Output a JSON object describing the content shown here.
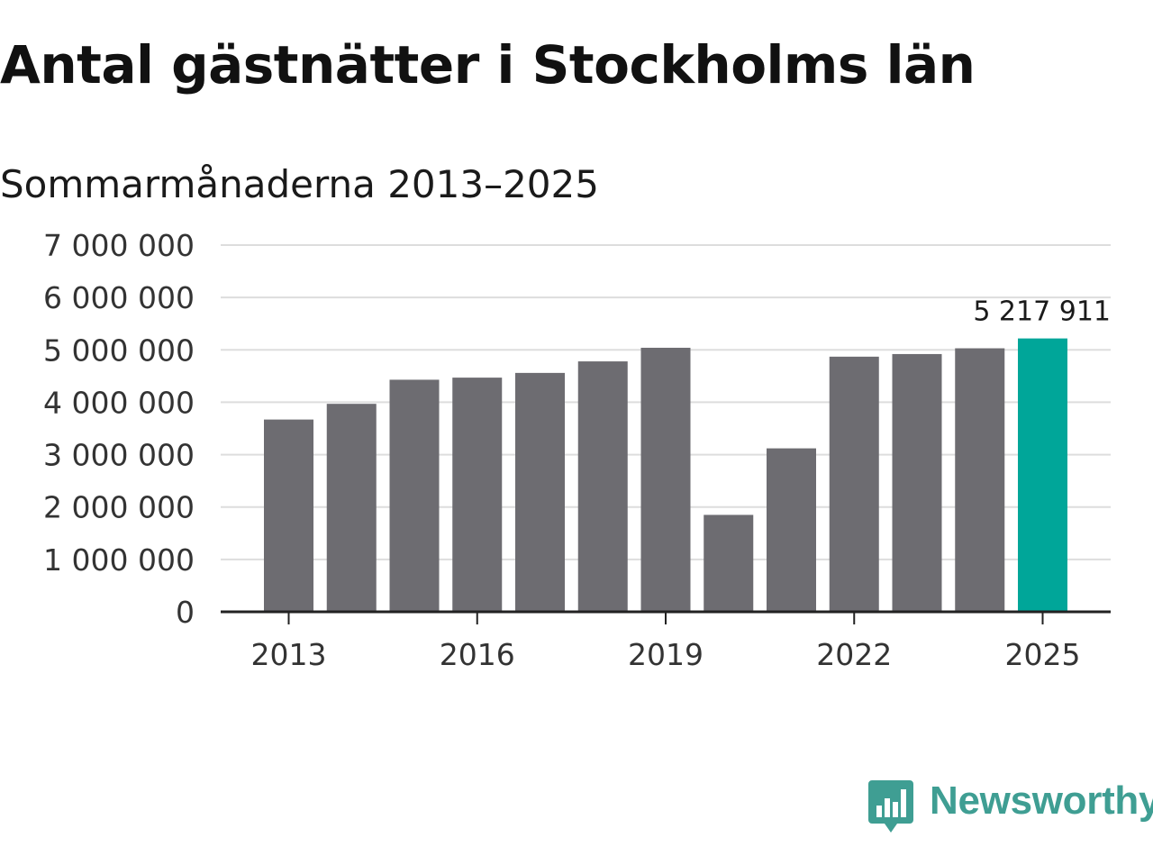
{
  "header": {
    "title": "Antal gästnätter i Stockholms län",
    "subtitle": "Sommarmånaderna 2013–2025"
  },
  "logo": {
    "text": "Newsworthy",
    "icon": "bar-chart-speech-bubble-icon",
    "color": "#3f9e93"
  },
  "colors": {
    "bar": "#6d6c71",
    "highlight": "#00a699",
    "grid": "#dddddd",
    "axis": "#222222"
  },
  "chart_data": {
    "type": "bar",
    "categories": [
      "2013",
      "2014",
      "2015",
      "2016",
      "2017",
      "2018",
      "2019",
      "2020",
      "2021",
      "2022",
      "2023",
      "2024",
      "2025"
    ],
    "values": [
      3670000,
      3970000,
      4430000,
      4470000,
      4560000,
      4780000,
      5040000,
      1850000,
      3120000,
      4870000,
      4920000,
      5030000,
      5217911
    ],
    "highlight_index": 12,
    "annotations": [
      {
        "category": "2025",
        "label": "5 217 911"
      }
    ],
    "xticks": [
      "2013",
      "2016",
      "2019",
      "2022",
      "2025"
    ],
    "yticks": [
      0,
      1000000,
      2000000,
      3000000,
      4000000,
      5000000,
      6000000,
      7000000
    ],
    "ytick_labels": [
      "0",
      "1 000 000",
      "2 000 000",
      "3 000 000",
      "4 000 000",
      "5 000 000",
      "6 000 000",
      "7 000 000"
    ],
    "ylim": [
      0,
      7000000
    ],
    "grid": true,
    "legend": false
  }
}
